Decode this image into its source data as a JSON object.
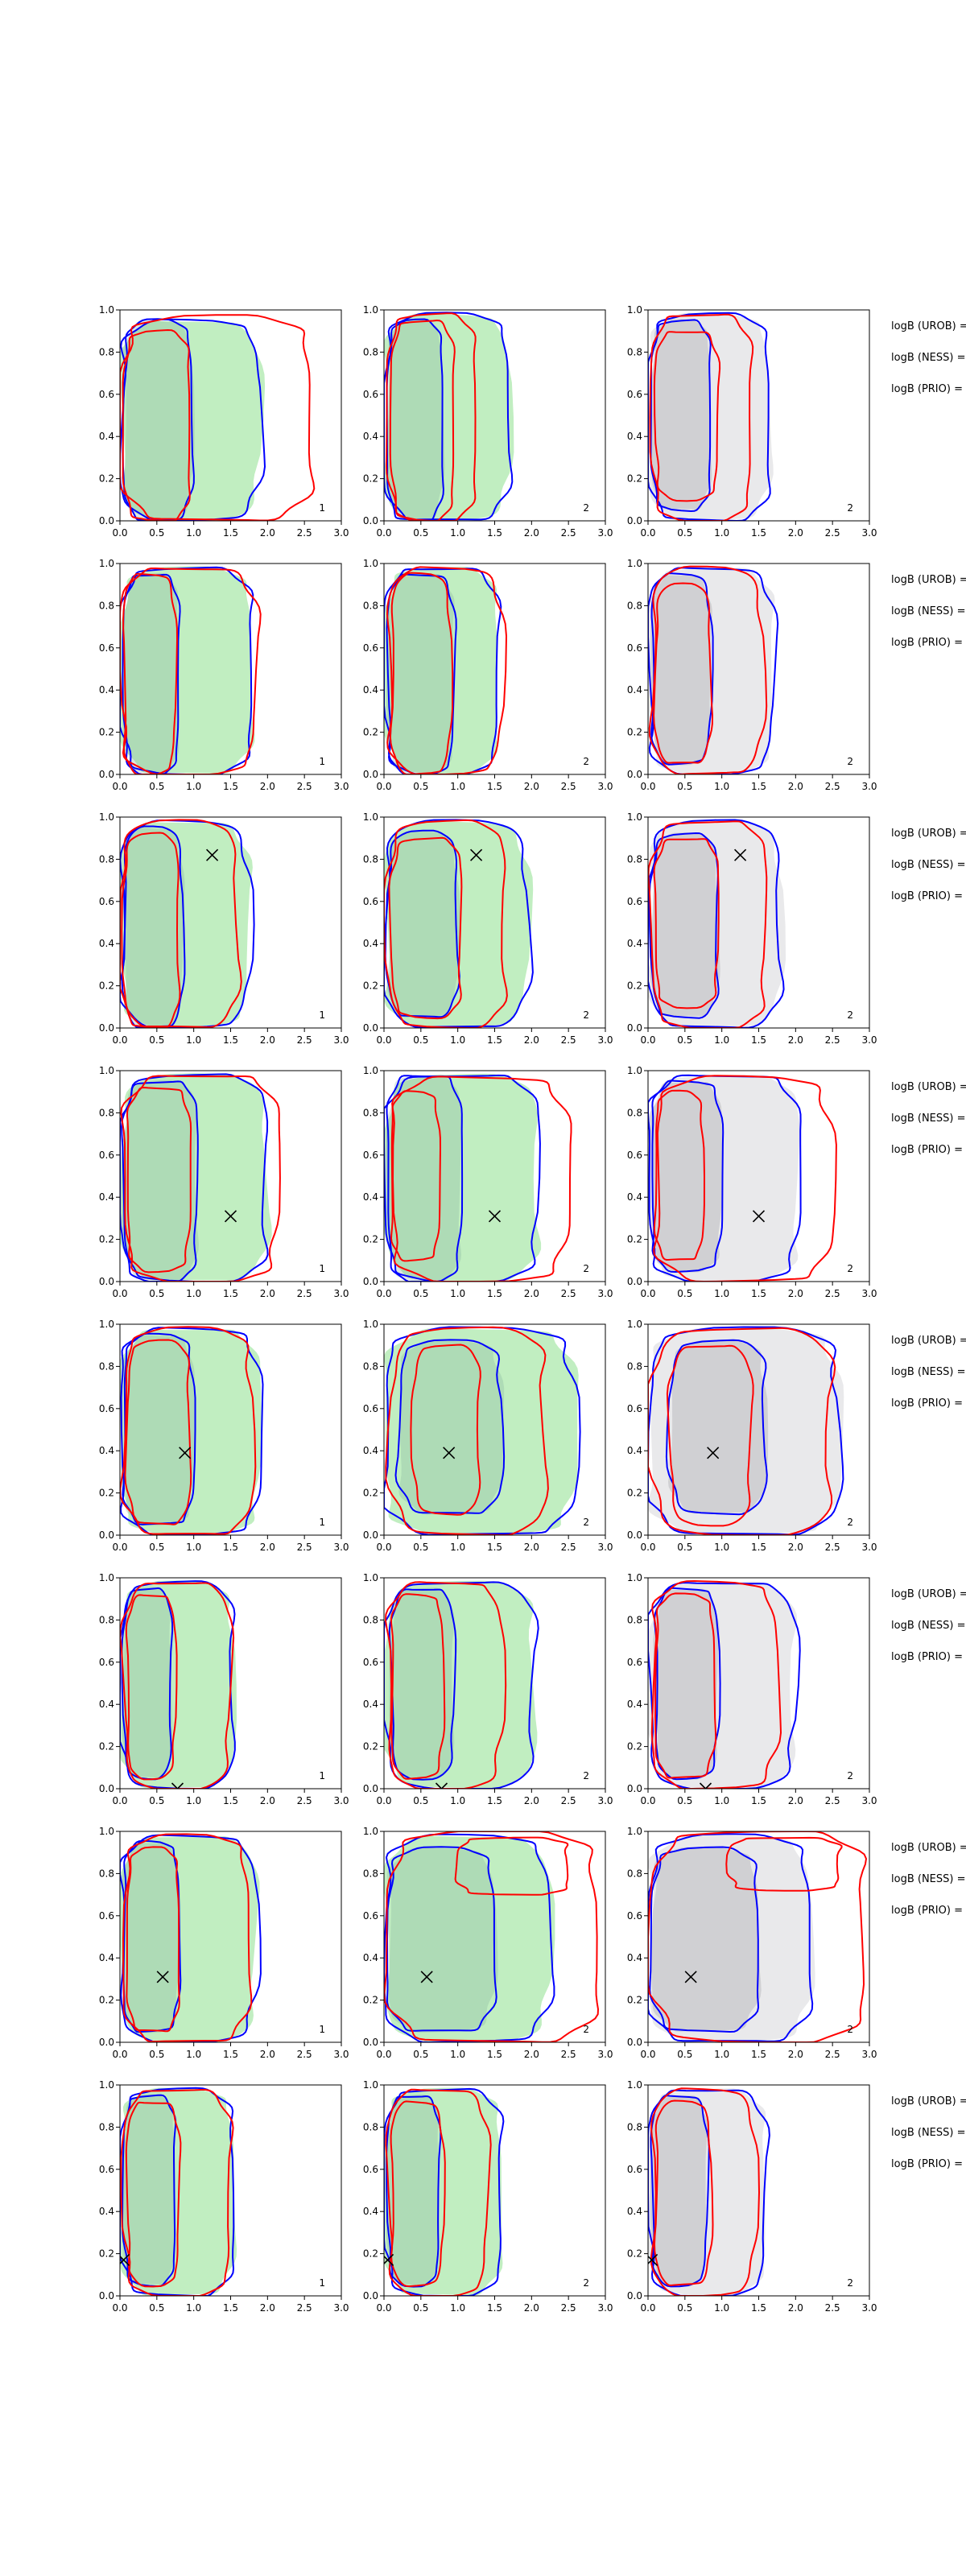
{
  "chart_data": {
    "type": "contour",
    "x_ticks": [
      "0.0",
      "0.5",
      "1.0",
      "1.5",
      "2.0",
      "2.5",
      "3.0"
    ],
    "y_ticks": [
      "0.0",
      "0.2",
      "0.4",
      "0.6",
      "0.8",
      "1.0"
    ],
    "xlim": [
      0,
      3
    ],
    "ylim": [
      0,
      1
    ],
    "colors": {
      "blue_line": "#0000ff",
      "red_line": "#ff0000",
      "green_fill": "#33c833",
      "grey_fill": "#9a9aa3",
      "marker": "#000000"
    },
    "panel_labels": [
      "1",
      "2",
      "2"
    ],
    "legend_labels": [
      "logB (UROB) =",
      "logB (NESS) =",
      "logB (PRIO) ="
    ],
    "rows": [
      {
        "marker": null,
        "panels": [
          {
            "fill": "green",
            "blue_in": [
              0.05,
              0.98,
              0.0,
              0.95
            ],
            "blue_out": [
              0.0,
              1.9,
              0.0,
              0.95
            ],
            "red_in": [
              0.05,
              0.95,
              0.0,
              0.9
            ],
            "red_out": [
              0.0,
              2.6,
              0.0,
              0.97
            ]
          },
          {
            "fill": "green",
            "blue_in": [
              0.05,
              0.8,
              0.0,
              0.95
            ],
            "blue_out": [
              0.0,
              1.7,
              0.0,
              0.98
            ],
            "red_in": [
              0.1,
              0.95,
              0.0,
              0.95
            ],
            "red_out": [
              0.05,
              1.25,
              0.0,
              0.98
            ]
          },
          {
            "fill": "grey",
            "blue_in": [
              0.05,
              0.85,
              0.05,
              0.95
            ],
            "blue_out": [
              0.0,
              1.65,
              0.0,
              0.98
            ],
            "red_in": [
              0.1,
              0.95,
              0.1,
              0.9
            ],
            "red_out": [
              0.05,
              1.4,
              0.0,
              0.98
            ]
          }
        ]
      },
      {
        "marker": null,
        "panels": [
          {
            "fill": "green",
            "blue_in": [
              0.05,
              0.8,
              0.0,
              0.95
            ],
            "blue_out": [
              0.0,
              1.8,
              0.0,
              0.98
            ],
            "red_in": [
              0.05,
              0.75,
              0.0,
              0.95
            ],
            "red_out": [
              0.0,
              1.85,
              0.0,
              0.98
            ]
          },
          {
            "fill": "green",
            "blue_in": [
              0.05,
              0.95,
              0.0,
              0.95
            ],
            "blue_out": [
              0.0,
              1.55,
              0.0,
              0.98
            ],
            "red_in": [
              0.1,
              0.9,
              0.0,
              0.95
            ],
            "red_out": [
              0.05,
              1.6,
              0.0,
              0.98
            ]
          },
          {
            "fill": "grey",
            "blue_in": [
              0.05,
              0.85,
              0.05,
              0.95
            ],
            "blue_out": [
              0.0,
              1.7,
              0.0,
              0.98
            ],
            "red_in": [
              0.1,
              0.85,
              0.05,
              0.9
            ],
            "red_out": [
              0.05,
              1.55,
              0.0,
              0.98
            ]
          }
        ]
      },
      {
        "marker": {
          "x": 1.25,
          "y": 0.82
        },
        "panels": [
          {
            "fill": "green",
            "blue_in": [
              0.05,
              0.85,
              0.0,
              0.95
            ],
            "blue_out": [
              0.0,
              1.75,
              0.0,
              0.98
            ],
            "red_in": [
              0.05,
              0.8,
              0.0,
              0.92
            ],
            "red_out": [
              0.0,
              1.6,
              0.0,
              0.98
            ]
          },
          {
            "fill": "green",
            "blue_in": [
              0.05,
              1.0,
              0.05,
              0.93
            ],
            "blue_out": [
              0.0,
              1.95,
              0.0,
              0.98
            ],
            "red_in": [
              0.1,
              1.05,
              0.05,
              0.9
            ],
            "red_out": [
              0.05,
              1.65,
              0.0,
              0.98
            ]
          },
          {
            "fill": "grey",
            "blue_in": [
              0.05,
              0.95,
              0.05,
              0.92
            ],
            "blue_out": [
              0.0,
              1.8,
              0.0,
              0.98
            ],
            "red_in": [
              0.1,
              0.95,
              0.1,
              0.9
            ],
            "red_out": [
              0.05,
              1.6,
              0.0,
              0.98
            ]
          }
        ]
      },
      {
        "marker": {
          "x": 1.5,
          "y": 0.31
        },
        "panels": [
          {
            "fill": "green",
            "blue_in": [
              0.05,
              1.05,
              0.0,
              0.95
            ],
            "blue_out": [
              0.0,
              2.0,
              0.0,
              0.98
            ],
            "red_in": [
              0.1,
              0.95,
              0.05,
              0.92
            ],
            "red_out": [
              0.05,
              2.15,
              0.0,
              0.98
            ]
          },
          {
            "fill": "green",
            "blue_in": [
              0.05,
              1.05,
              0.0,
              0.98
            ],
            "blue_out": [
              0.0,
              2.1,
              0.0,
              0.98
            ],
            "red_in": [
              0.1,
              0.75,
              0.1,
              0.9
            ],
            "red_out": [
              0.1,
              2.5,
              0.0,
              0.97
            ]
          },
          {
            "fill": "grey",
            "blue_in": [
              0.05,
              1.0,
              0.05,
              0.95
            ],
            "blue_out": [
              0.0,
              2.05,
              0.0,
              0.98
            ],
            "red_in": [
              0.1,
              0.75,
              0.1,
              0.9
            ],
            "red_out": [
              0.1,
              2.5,
              0.0,
              0.97
            ]
          }
        ]
      },
      {
        "marker": {
          "x": 0.88,
          "y": 0.39
        },
        "panels": [
          {
            "fill": "green",
            "blue_in": [
              0.05,
              1.0,
              0.05,
              0.95
            ],
            "blue_out": [
              0.0,
              1.9,
              0.0,
              0.98
            ],
            "red_in": [
              0.1,
              0.95,
              0.05,
              0.92
            ],
            "red_out": [
              0.05,
              1.8,
              0.0,
              0.98
            ]
          },
          {
            "fill": "green",
            "blue_in": [
              0.2,
              1.6,
              0.1,
              0.92
            ],
            "blue_out": [
              0.0,
              2.6,
              0.0,
              0.98
            ],
            "red_in": [
              0.4,
              1.3,
              0.1,
              0.9
            ],
            "red_out": [
              0.1,
              2.2,
              0.0,
              0.98
            ]
          },
          {
            "fill": "grey",
            "blue_in": [
              0.3,
              1.6,
              0.1,
              0.92
            ],
            "blue_out": [
              0.0,
              2.6,
              0.0,
              0.98
            ],
            "red_in": [
              0.3,
              1.4,
              0.05,
              0.9
            ],
            "red_out": [
              0.05,
              2.5,
              0.0,
              0.98
            ]
          }
        ]
      },
      {
        "marker": {
          "x": 0.78,
          "y": 0.0
        },
        "panels": [
          {
            "fill": "green",
            "blue_in": [
              0.05,
              0.7,
              0.05,
              0.95
            ],
            "blue_out": [
              0.0,
              1.55,
              0.0,
              0.98
            ],
            "red_in": [
              0.1,
              0.75,
              0.05,
              0.92
            ],
            "red_out": [
              0.05,
              1.5,
              0.0,
              0.98
            ]
          },
          {
            "fill": "green",
            "blue_in": [
              0.1,
              0.95,
              0.05,
              0.95
            ],
            "blue_out": [
              0.0,
              2.05,
              0.0,
              0.98
            ],
            "red_in": [
              0.1,
              0.8,
              0.05,
              0.92
            ],
            "red_out": [
              0.05,
              1.6,
              0.0,
              0.98
            ]
          },
          {
            "fill": "grey",
            "blue_in": [
              0.1,
              0.95,
              0.05,
              0.95
            ],
            "blue_out": [
              0.0,
              2.0,
              0.0,
              0.98
            ],
            "red_in": [
              0.1,
              0.9,
              0.05,
              0.92
            ],
            "red_out": [
              0.05,
              1.75,
              0.0,
              0.98
            ]
          }
        ]
      },
      {
        "marker": {
          "x": 0.58,
          "y": 0.31
        },
        "panels": [
          {
            "fill": "green",
            "blue_in": [
              0.05,
              0.8,
              0.05,
              0.95
            ],
            "blue_out": [
              0.0,
              1.85,
              0.0,
              0.98
            ],
            "red_in": [
              0.1,
              0.8,
              0.05,
              0.92
            ],
            "red_out": [
              0.05,
              1.75,
              0.0,
              0.98
            ]
          },
          {
            "fill": "green",
            "blue_in": [
              0.05,
              1.5,
              0.05,
              0.92
            ],
            "blue_out": [
              0.0,
              2.25,
              0.0,
              0.98
            ],
            "red_in": [
              1.0,
              2.5,
              0.7,
              0.97
            ],
            "red_out": [
              0.05,
              2.9,
              0.0,
              1.0
            ]
          },
          {
            "fill": "grey",
            "blue_in": [
              0.05,
              1.5,
              0.05,
              0.92
            ],
            "blue_out": [
              0.0,
              2.2,
              0.0,
              0.98
            ],
            "red_in": [
              1.1,
              2.6,
              0.72,
              0.97
            ],
            "red_out": [
              0.05,
              2.95,
              0.0,
              1.0
            ]
          }
        ]
      },
      {
        "marker": {
          "x": 0.05,
          "y": 0.17
        },
        "panels": [
          {
            "fill": "green",
            "blue_in": [
              0.05,
              0.75,
              0.05,
              0.95
            ],
            "blue_out": [
              0.0,
              1.55,
              0.0,
              0.98
            ],
            "red_in": [
              0.1,
              0.8,
              0.05,
              0.92
            ],
            "red_out": [
              0.05,
              1.5,
              0.0,
              0.98
            ]
          },
          {
            "fill": "green",
            "blue_in": [
              0.05,
              0.75,
              0.05,
              0.95
            ],
            "blue_out": [
              0.0,
              1.6,
              0.0,
              0.98
            ],
            "red_in": [
              0.1,
              0.8,
              0.05,
              0.92
            ],
            "red_out": [
              0.05,
              1.4,
              0.0,
              0.98
            ]
          },
          {
            "fill": "grey",
            "blue_in": [
              0.05,
              0.8,
              0.05,
              0.95
            ],
            "blue_out": [
              0.0,
              1.6,
              0.0,
              0.98
            ],
            "red_in": [
              0.1,
              0.85,
              0.05,
              0.92
            ],
            "red_out": [
              0.05,
              1.45,
              0.0,
              0.98
            ]
          }
        ]
      }
    ]
  }
}
